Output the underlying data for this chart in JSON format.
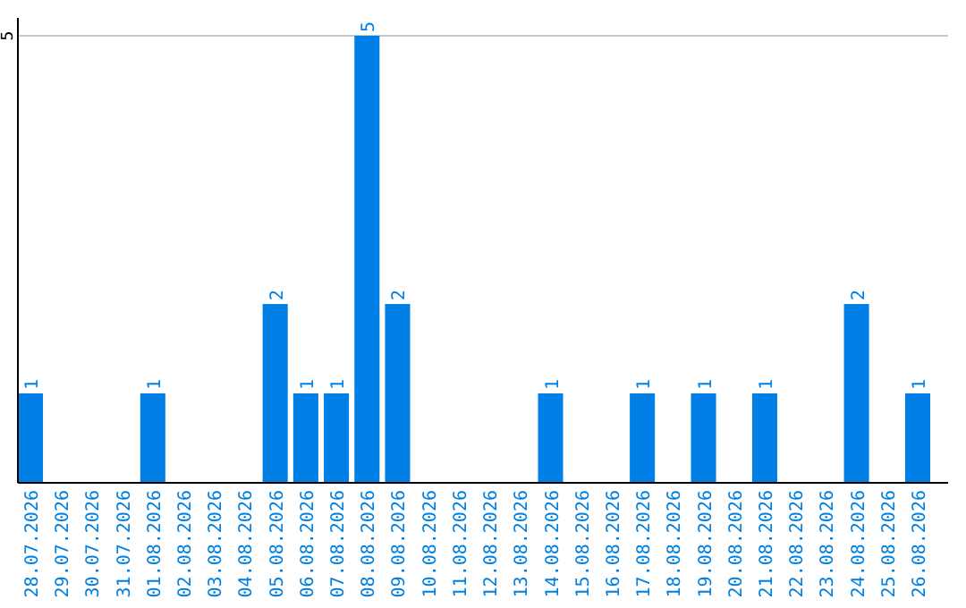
{
  "chart_data": {
    "type": "bar",
    "categories": [
      "28.07.2026",
      "29.07.2026",
      "30.07.2026",
      "31.07.2026",
      "01.08.2026",
      "02.08.2026",
      "03.08.2026",
      "04.08.2026",
      "05.08.2026",
      "06.08.2026",
      "07.08.2026",
      "08.08.2026",
      "09.08.2026",
      "10.08.2026",
      "11.08.2026",
      "12.08.2026",
      "13.08.2026",
      "14.08.2026",
      "15.08.2026",
      "16.08.2026",
      "17.08.2026",
      "18.08.2026",
      "19.08.2026",
      "20.08.2026",
      "21.08.2026",
      "22.08.2026",
      "23.08.2026",
      "24.08.2026",
      "25.08.2026",
      "26.08.2026"
    ],
    "values": [
      1,
      0,
      0,
      0,
      1,
      0,
      0,
      0,
      2,
      1,
      1,
      5,
      2,
      0,
      0,
      0,
      0,
      1,
      0,
      0,
      1,
      0,
      1,
      0,
      1,
      0,
      0,
      2,
      0,
      1
    ],
    "value_labels": [
      "1",
      null,
      null,
      null,
      "1",
      null,
      null,
      null,
      "2",
      "1",
      "1",
      "5",
      "2",
      null,
      null,
      null,
      null,
      "1",
      null,
      null,
      "1",
      null,
      "1",
      null,
      "1",
      null,
      null,
      "2",
      null,
      "1"
    ],
    "color": "#0080e6",
    "ylim": [
      0,
      5
    ],
    "yticks": [
      5
    ],
    "ref_lines": [
      {
        "axis": "y",
        "value": 5,
        "color": "#c8c8c8"
      }
    ]
  }
}
